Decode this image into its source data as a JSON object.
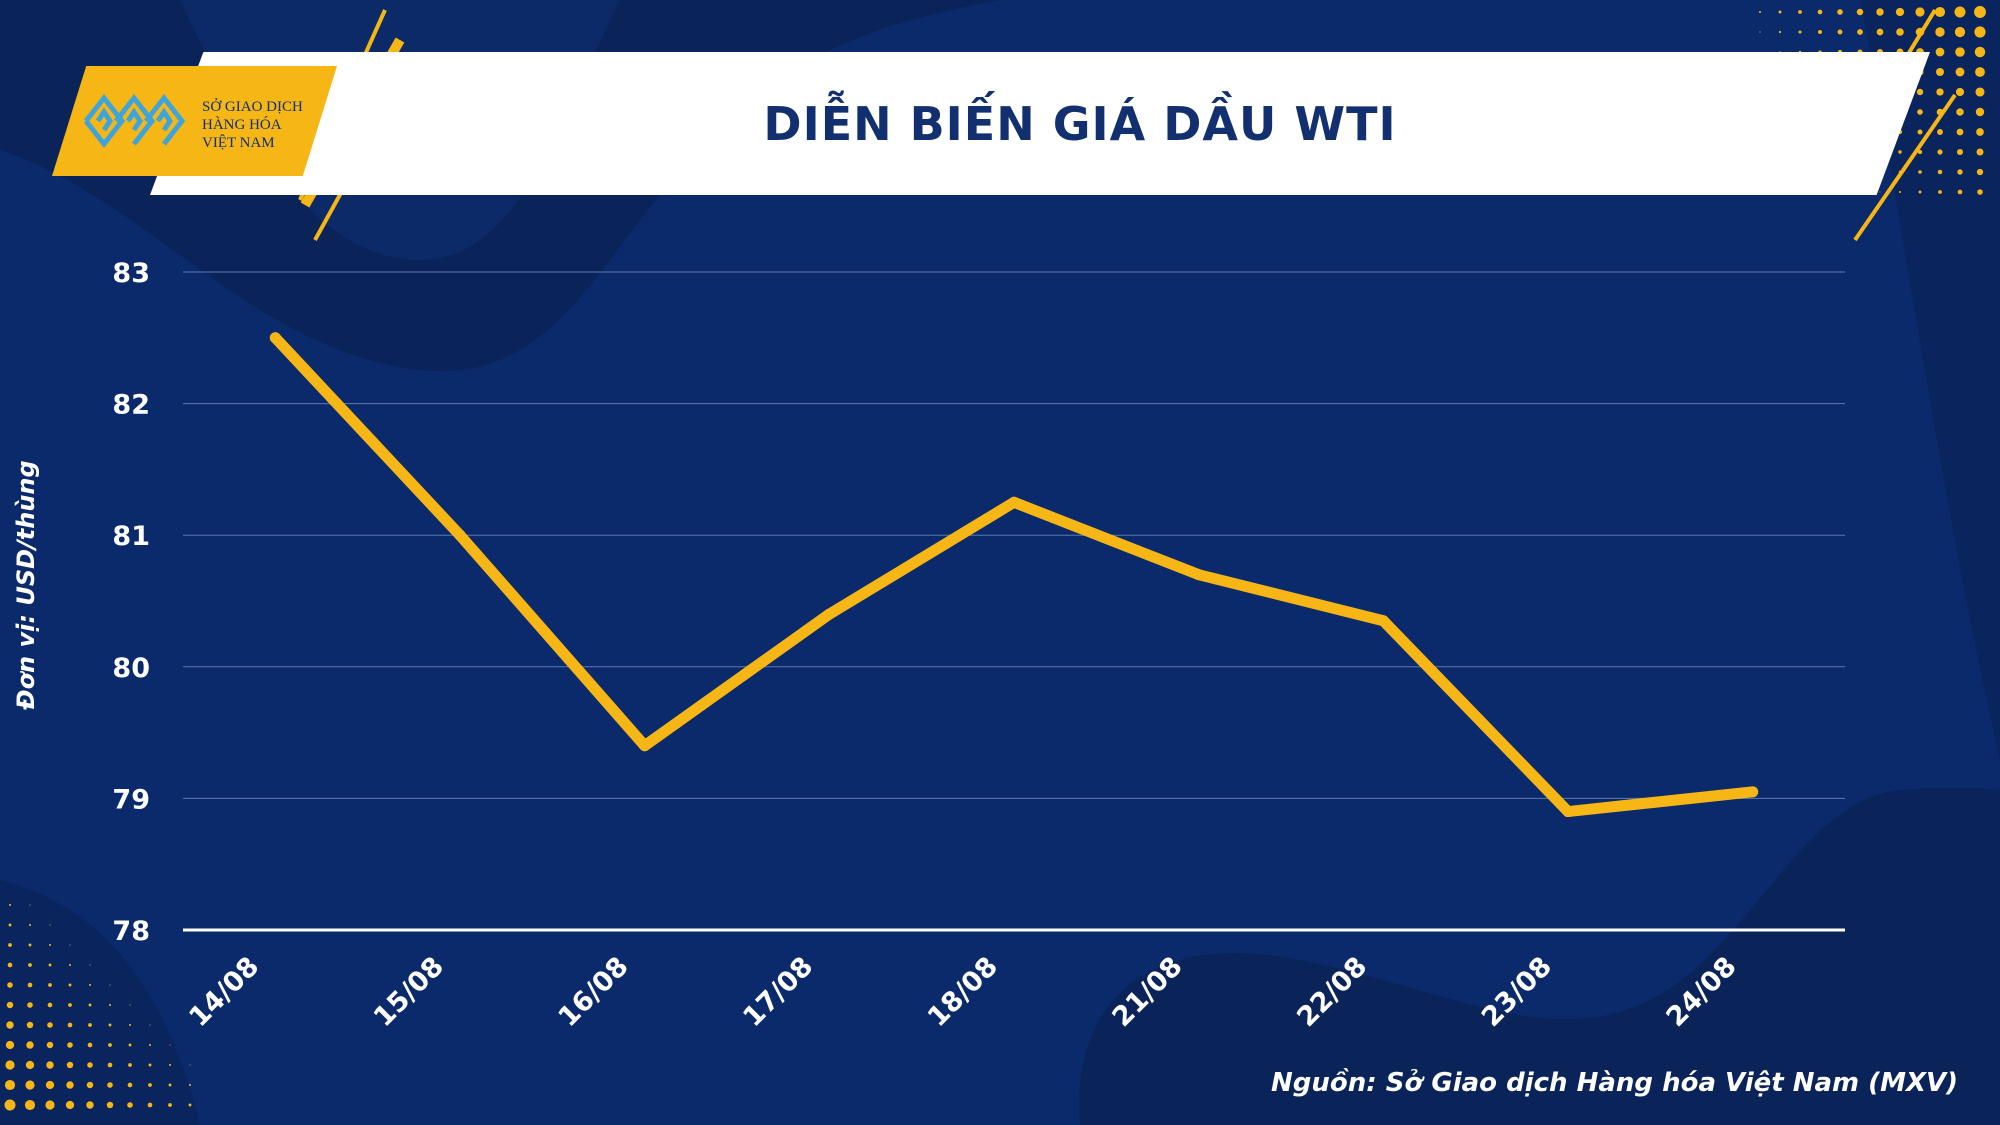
{
  "header": {
    "title": "DIỄN BIẾN GIÁ DẦU WTI",
    "logo_lines": [
      "SỞ GIAO DỊCH",
      "HÀNG HÓA",
      "VIỆT NAM"
    ]
  },
  "footer": {
    "source": "Nguồn: Sở Giao dịch Hàng hóa Việt Nam (MXV)"
  },
  "colors": {
    "background": "#0b2a6b",
    "accent": "#f5b616",
    "banner": "#ffffff",
    "title_text": "#12306f",
    "grid": "#5d78b0"
  },
  "chart_data": {
    "type": "line",
    "title": "DIỄN BIẾN GIÁ DẦU WTI",
    "ylabel": "Đơn vị: USD/thùng",
    "xlabel": "",
    "categories": [
      "14/08",
      "15/08",
      "16/08",
      "17/08",
      "18/08",
      "21/08",
      "22/08",
      "23/08",
      "24/08"
    ],
    "values": [
      82.5,
      81.0,
      79.4,
      80.4,
      81.25,
      80.7,
      80.35,
      78.9,
      79.05
    ],
    "ylim": [
      78,
      83
    ],
    "yticks": [
      "78",
      "79",
      "80",
      "81",
      "82",
      "83"
    ],
    "grid": true,
    "legend": "none",
    "line_color": "#f5b616"
  }
}
